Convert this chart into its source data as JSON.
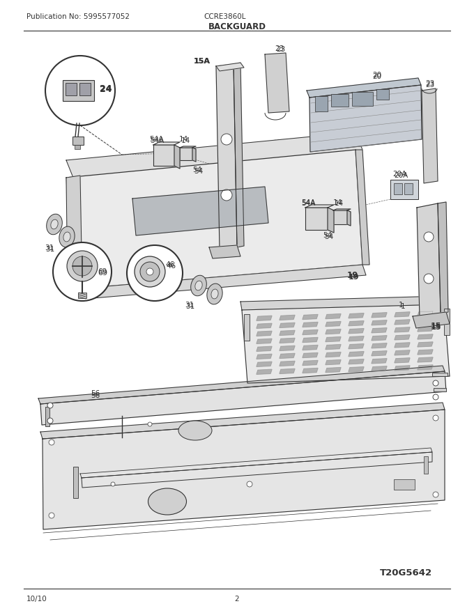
{
  "title": "BACKGUARD",
  "pub_no": "Publication No: 5995577052",
  "model": "CCRE3860L",
  "date": "10/10",
  "page": "2",
  "diagram_code": "T20G5642",
  "bg_color": "#ffffff",
  "line_color": "#333333",
  "fig_width": 6.8,
  "fig_height": 8.8,
  "dpi": 100
}
